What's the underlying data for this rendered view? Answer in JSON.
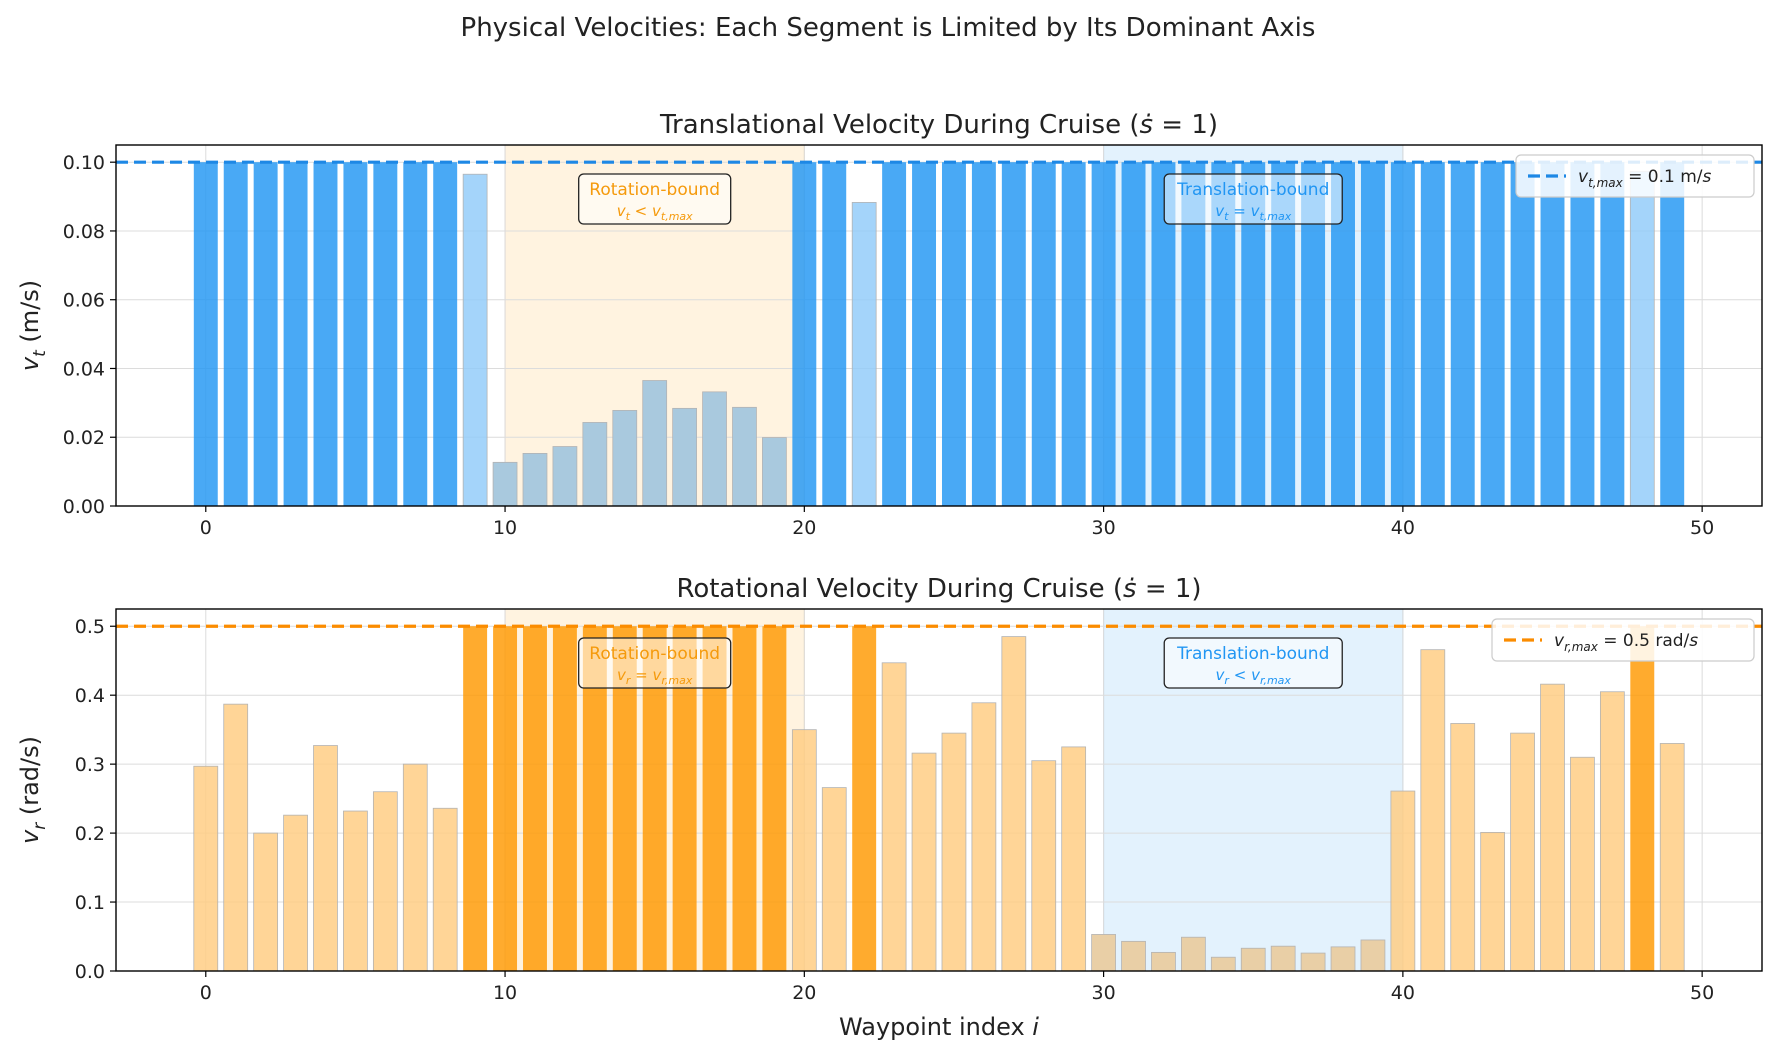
{
  "figure_title": "Physical Velocities: Each Segment is Limited by Its Dominant Axis",
  "colors": {
    "trans_strong": "#2196F3",
    "trans_light": "#90CAF9",
    "rot_strong": "#FF9800",
    "rot_light": "#FFCC80",
    "rot_region": "#FFF3E0",
    "trans_region": "#E3F2FD"
  },
  "chart_data": [
    {
      "type": "bar",
      "title": "Translational Velocity During Cruise (ṡ = 1)",
      "xlabel": "",
      "ylabel": "v_t (m/s)",
      "xlim": [
        -3,
        52
      ],
      "ylim": [
        0,
        0.105
      ],
      "xticks": [
        0,
        10,
        20,
        30,
        40,
        50
      ],
      "yticks": [
        0.0,
        0.02,
        0.04,
        0.06,
        0.08,
        0.1
      ],
      "grid": true,
      "x": [
        0,
        1,
        2,
        3,
        4,
        5,
        6,
        7,
        8,
        9,
        10,
        11,
        12,
        13,
        14,
        15,
        16,
        17,
        18,
        19,
        20,
        21,
        22,
        23,
        24,
        25,
        26,
        27,
        28,
        29,
        30,
        31,
        32,
        33,
        34,
        35,
        36,
        37,
        38,
        39,
        40,
        41,
        42,
        43,
        44,
        45,
        46,
        47,
        48,
        49
      ],
      "values": [
        0.1,
        0.1,
        0.1,
        0.1,
        0.1,
        0.1,
        0.1,
        0.1,
        0.1,
        0.0965,
        0.0127,
        0.0153,
        0.0173,
        0.0243,
        0.0278,
        0.0365,
        0.0284,
        0.0332,
        0.0287,
        0.0199,
        0.1,
        0.1,
        0.0883,
        0.1,
        0.1,
        0.1,
        0.1,
        0.1,
        0.1,
        0.1,
        0.1,
        0.1,
        0.1,
        0.1,
        0.1,
        0.1,
        0.1,
        0.1,
        0.1,
        0.1,
        0.1,
        0.1,
        0.1,
        0.1,
        0.1,
        0.1,
        0.1,
        0.1,
        0.0973,
        0.1
      ],
      "limit": {
        "value": 0.1,
        "label": "v_t,max = 0.1 m/s"
      },
      "legend": {
        "loc": "upper right",
        "entries": [
          "v_t,max = 0.1 m/s"
        ]
      },
      "regions": [
        {
          "x0": 10,
          "x1": 20,
          "kind": "rot",
          "label": "Rotation-bound",
          "sublabel": "v_t < v_t,max"
        },
        {
          "x0": 30,
          "x1": 40,
          "kind": "trans",
          "label": "Translation-bound",
          "sublabel": "v_t = v_t,max"
        }
      ]
    },
    {
      "type": "bar",
      "title": "Rotational Velocity During Cruise (ṡ = 1)",
      "xlabel": "Waypoint index i",
      "ylabel": "v_r (rad/s)",
      "xlim": [
        -3,
        52
      ],
      "ylim": [
        0,
        0.525
      ],
      "xticks": [
        0,
        10,
        20,
        30,
        40,
        50
      ],
      "yticks": [
        0.0,
        0.1,
        0.2,
        0.3,
        0.4,
        0.5
      ],
      "grid": true,
      "x": [
        0,
        1,
        2,
        3,
        4,
        5,
        6,
        7,
        8,
        9,
        10,
        11,
        12,
        13,
        14,
        15,
        16,
        17,
        18,
        19,
        20,
        21,
        22,
        23,
        24,
        25,
        26,
        27,
        28,
        29,
        30,
        31,
        32,
        33,
        34,
        35,
        36,
        37,
        38,
        39,
        40,
        41,
        42,
        43,
        44,
        45,
        46,
        47,
        48,
        49
      ],
      "values": [
        0.297,
        0.387,
        0.2,
        0.226,
        0.327,
        0.232,
        0.26,
        0.3,
        0.236,
        0.5,
        0.5,
        0.5,
        0.5,
        0.5,
        0.5,
        0.5,
        0.5,
        0.5,
        0.5,
        0.5,
        0.35,
        0.266,
        0.5,
        0.447,
        0.316,
        0.345,
        0.389,
        0.485,
        0.305,
        0.325,
        0.053,
        0.043,
        0.027,
        0.049,
        0.02,
        0.033,
        0.036,
        0.026,
        0.035,
        0.045,
        0.261,
        0.466,
        0.359,
        0.201,
        0.345,
        0.416,
        0.31,
        0.405,
        0.5,
        0.33
      ],
      "limit": {
        "value": 0.5,
        "label": "v_r,max = 0.5 rad/s"
      },
      "legend": {
        "loc": "upper right",
        "entries": [
          "v_r,max = 0.5 rad/s"
        ]
      },
      "regions": [
        {
          "x0": 10,
          "x1": 20,
          "kind": "rot",
          "label": "Rotation-bound",
          "sublabel": "v_r = v_r,max"
        },
        {
          "x0": 30,
          "x1": 40,
          "kind": "trans",
          "label": "Translation-bound",
          "sublabel": "v_r < v_r,max"
        }
      ]
    }
  ]
}
